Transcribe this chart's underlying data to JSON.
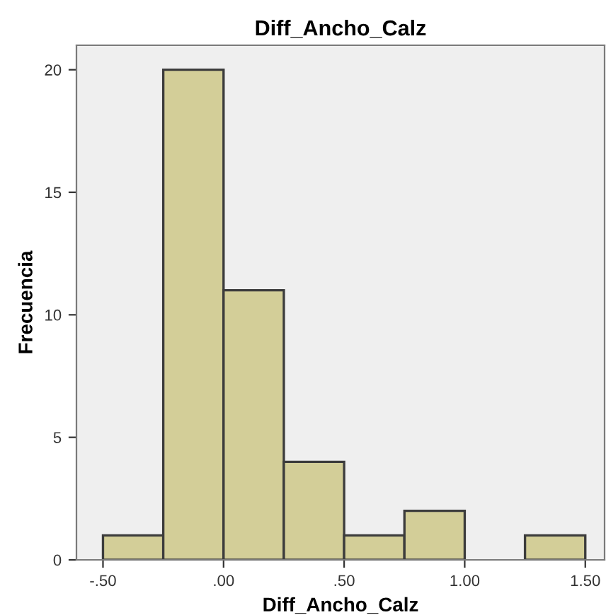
{
  "chart_data": {
    "type": "histogram",
    "title": "Diff_Ancho_Calz",
    "xlabel": "Diff_Ancho_Calz",
    "ylabel": "Frecuencia",
    "bins": [
      -0.5,
      -0.25,
      0,
      0.25,
      0.5,
      0.75,
      1.0,
      1.25,
      1.5
    ],
    "values": [
      1,
      20,
      11,
      4,
      1,
      2,
      0,
      1
    ],
    "color": "#d3ce98",
    "xlim": [
      -0.61,
      1.58
    ],
    "ylim": [
      0,
      21
    ],
    "xticks": [
      {
        "value": -0.5,
        "label": "-.50"
      },
      {
        "value": 0,
        "label": ".00"
      },
      {
        "value": 0.5,
        "label": ".50"
      },
      {
        "value": 1.0,
        "label": "1.00"
      },
      {
        "value": 1.5,
        "label": "1.50"
      }
    ],
    "yticks": [
      0,
      5,
      10,
      15,
      20
    ],
    "grid": false
  }
}
